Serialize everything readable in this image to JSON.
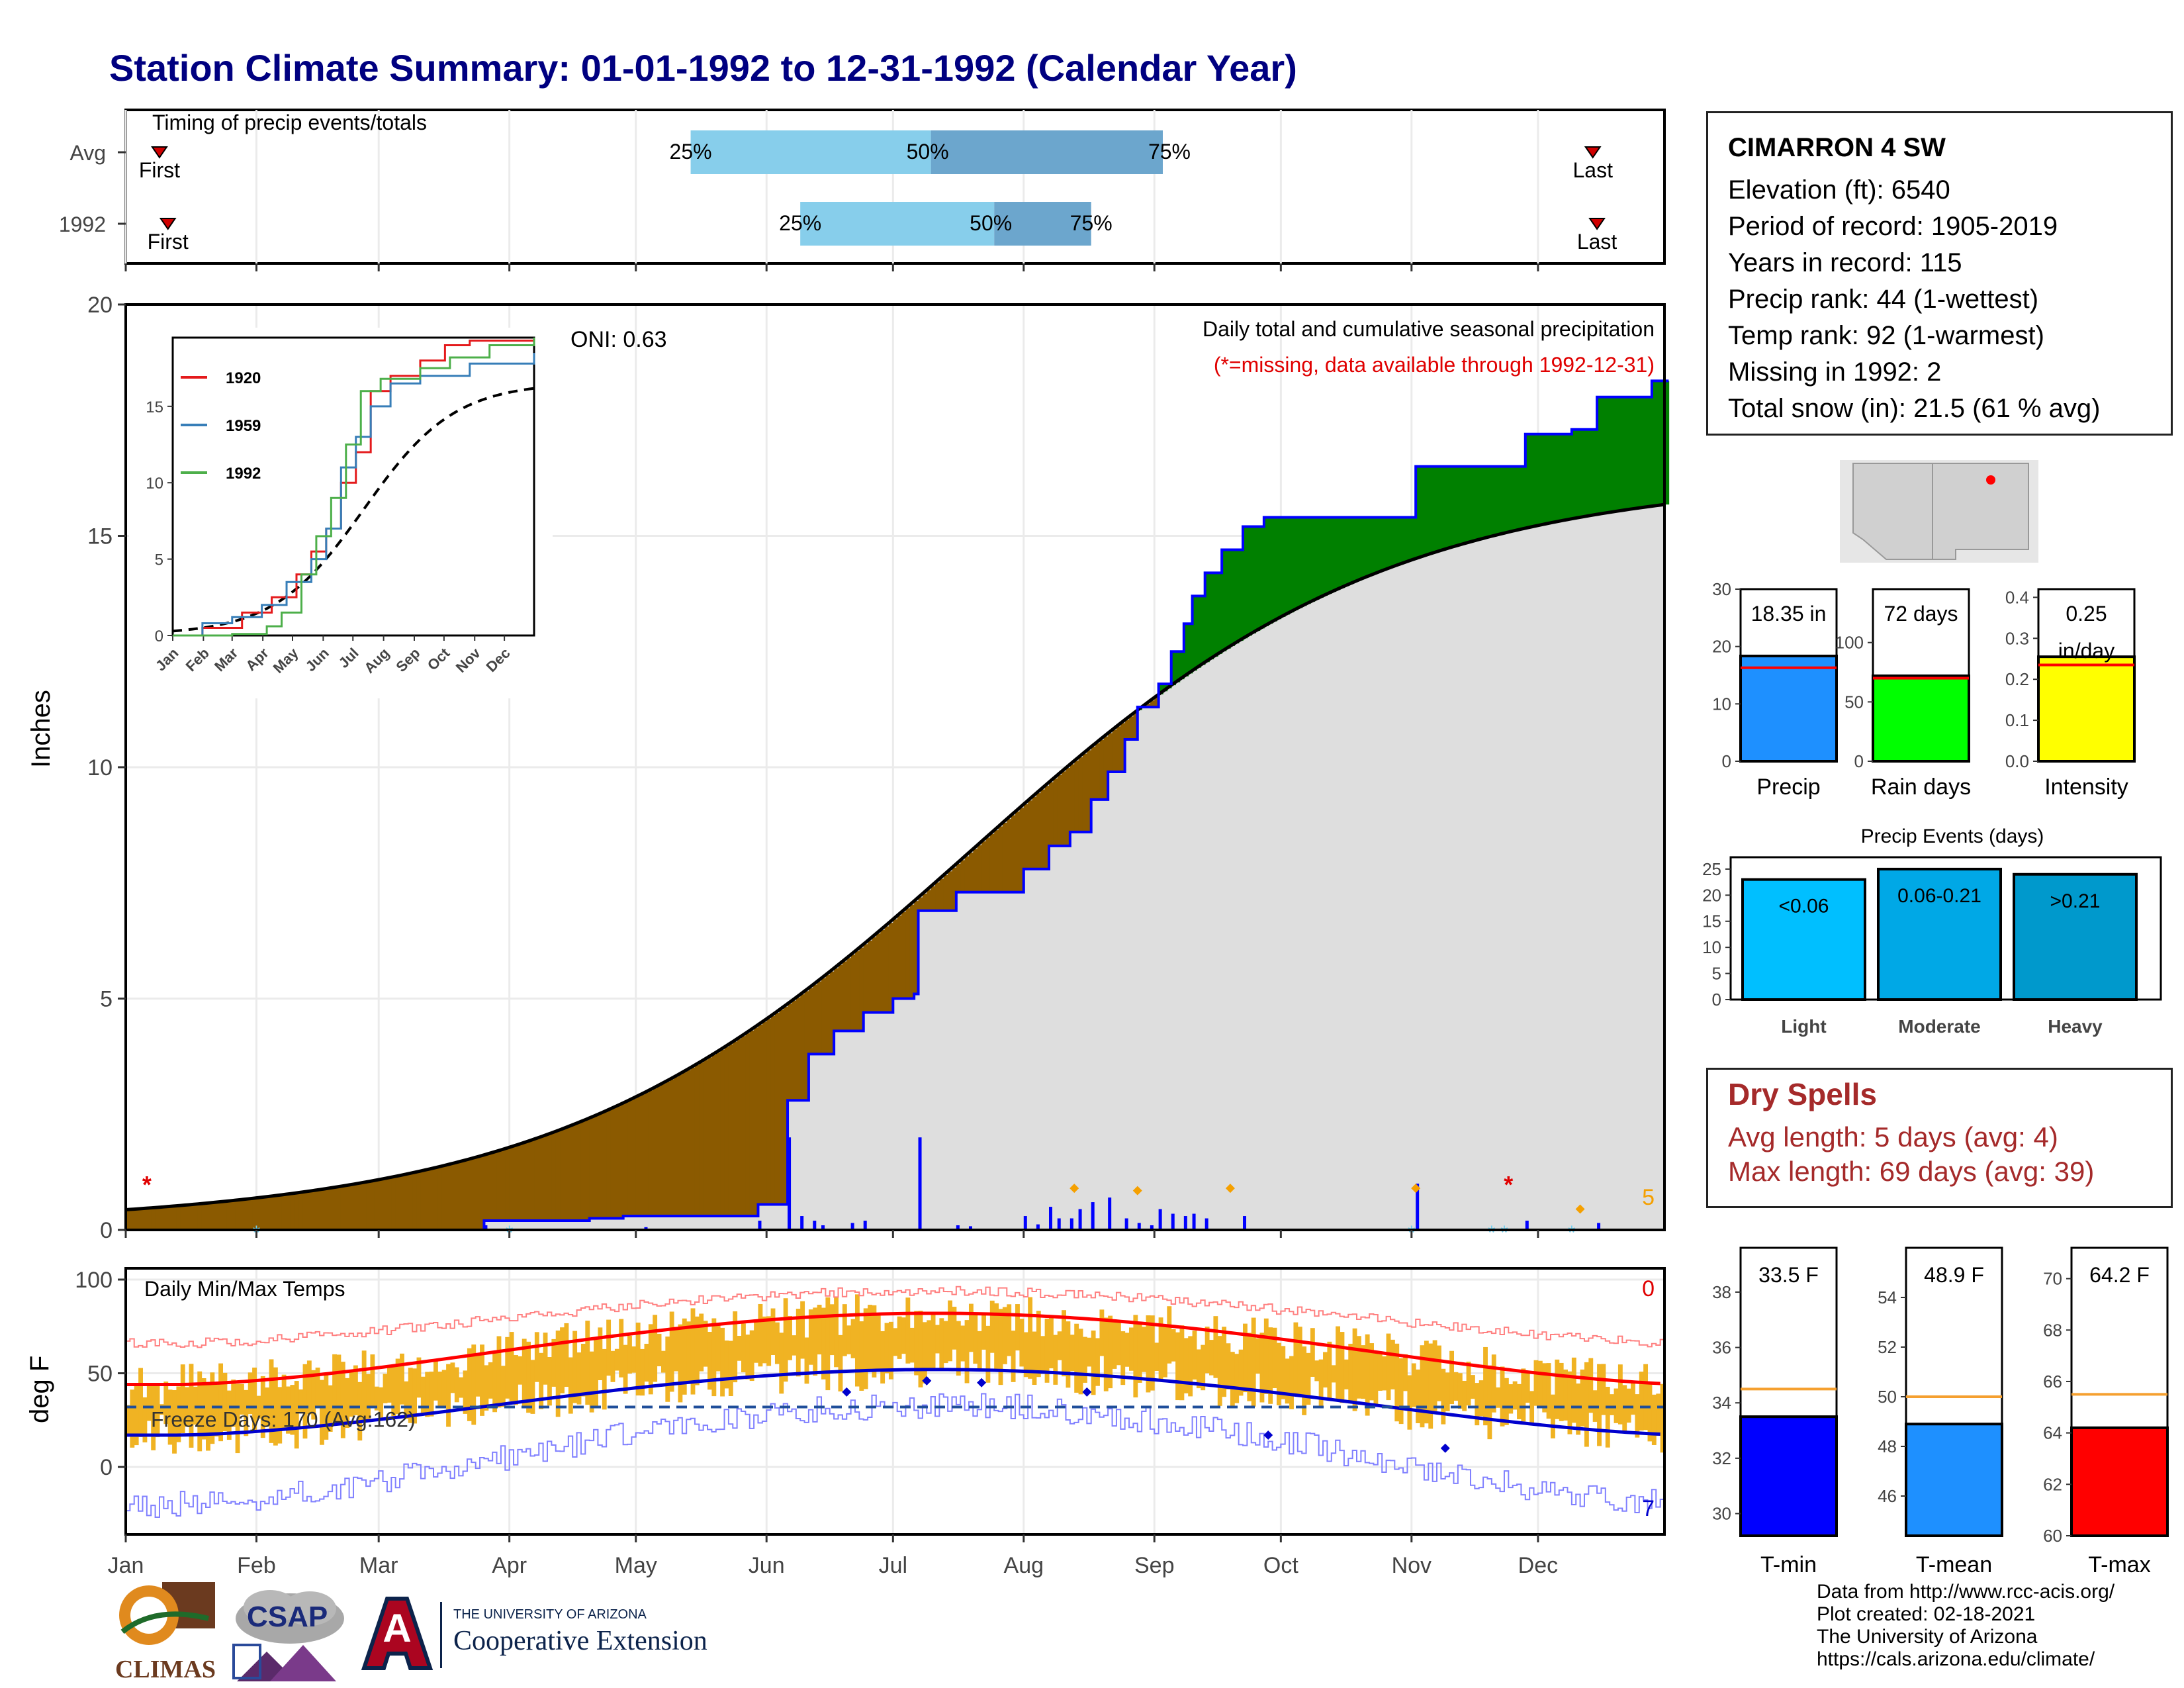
{
  "title": "Station Climate Summary: 01-01-1992 to 12-31-1992 (Calendar Year)",
  "colors": {
    "title": "#000080",
    "normal_fill": "#DEDEDE",
    "above_normal": "#008000",
    "below_normal": "#8B5A00",
    "precip_bar": "#0000FF",
    "temp_bar": "#F0B323",
    "tmax_line": "#FF0000",
    "tmin_line": "#0000CD",
    "quartile_light": "#87CEEB",
    "quartile_dark": "#6CA6CD"
  },
  "timing_panel": {
    "title": "Timing of precip events/totals",
    "rows": [
      {
        "label": "Avg",
        "first_label": "First",
        "last_label": "Last",
        "q25_label": "25%",
        "q50_label": "50%",
        "q75_label": "75%",
        "first": 8,
        "last": 348,
        "q25": 134,
        "q50": 191,
        "q75": 246
      },
      {
        "label": "1992",
        "first_label": "First",
        "last_label": "Last",
        "q25_label": "25%",
        "q50_label": "50%",
        "q75_label": "75%",
        "first": 10,
        "last": 349,
        "q25": 160,
        "q50": 206,
        "q75": 229
      }
    ]
  },
  "precip_panel": {
    "ylabel": "Inches",
    "subtitle": "Daily total and cumulative seasonal precipitation",
    "missing_note": "(*=missing, data available through 1992-12-31)",
    "oni": "ONI: 0.63",
    "missing_count": "5",
    "yticks": [
      "0",
      "5",
      "10",
      "15",
      "20"
    ],
    "ylim": [
      0,
      20
    ]
  },
  "inset": {
    "legend": [
      {
        "name": "1920",
        "color": "#E41A1C"
      },
      {
        "name": "1959",
        "color": "#377EB8"
      },
      {
        "name": "1992",
        "color": "#4DAF4A"
      }
    ],
    "yticks": [
      "0",
      "5",
      "10",
      "15"
    ],
    "months": [
      "Jan",
      "Feb",
      "Mar",
      "Apr",
      "May",
      "Jun",
      "Jul",
      "Aug",
      "Sep",
      "Oct",
      "Nov",
      "Dec"
    ]
  },
  "temp_panel": {
    "ylabel": "deg F",
    "title": "Daily Min/Max Temps",
    "freeze": "Freeze Days: 170 (Avg:162)",
    "count_top": "0",
    "count_bottom": "7",
    "yticks": [
      "0",
      "50",
      "100"
    ]
  },
  "x_months": [
    "Jan",
    "Feb",
    "Mar",
    "Apr",
    "May",
    "Jun",
    "Jul",
    "Aug",
    "Sep",
    "Oct",
    "Nov",
    "Dec"
  ],
  "station": {
    "name": "CIMARRON 4 SW",
    "lines": [
      "Elevation (ft): 6540",
      "Period of record: 1905-2019",
      "Years in record: 115",
      "Precip rank: 44 (1-wettest)",
      "Temp rank: 92 (1-warmest)",
      "Missing in 1992: 2",
      "Total snow (in): 21.5 (61 % avg)"
    ]
  },
  "mini_bars": [
    {
      "label": "Precip",
      "value_text": "18.35 in",
      "value": 18.35,
      "avg": 16.3,
      "ymax": 30,
      "ticks": [
        "0",
        "10",
        "20",
        "30"
      ],
      "tickvals": [
        0,
        10,
        20,
        30
      ],
      "color": "#1E90FF"
    },
    {
      "label": "Rain days",
      "value_text": "72 days",
      "value": 72,
      "avg": 70,
      "ymax": 145,
      "ticks": [
        "0",
        "50",
        "100"
      ],
      "tickvals": [
        0,
        50,
        100
      ],
      "color": "#00FF00"
    },
    {
      "label": "Intensity",
      "value_text": "0.25\nin/day",
      "value": 0.255,
      "avg": 0.235,
      "ymax": 0.42,
      "ticks": [
        "0.0",
        "0.1",
        "0.2",
        "0.3",
        "0.4"
      ],
      "tickvals": [
        0,
        0.1,
        0.2,
        0.3,
        0.4
      ],
      "color": "#FFFF00"
    }
  ],
  "events": {
    "title": "Precip Events (days)",
    "ticks": [
      "0",
      "5",
      "10",
      "15",
      "20",
      "25"
    ],
    "bars": [
      {
        "label": "Light",
        "range": "<0.06",
        "value": 23,
        "color": "#00BFFF"
      },
      {
        "label": "Moderate",
        "range": "0.06-0.21",
        "value": 25,
        "color": "#00A8E6"
      },
      {
        "label": "Heavy",
        "range": ">0.21",
        "value": 24,
        "color": "#0099CC"
      }
    ]
  },
  "dry_spells": {
    "title": "Dry Spells",
    "avg": "Avg length: 5 days (avg: 4)",
    "max": "Max length: 69 days (avg: 39)"
  },
  "temp_bars": [
    {
      "label": "T-min",
      "value_text": "33.5 F",
      "value": 33.5,
      "avg": 34.5,
      "ymin": 29.2,
      "ymax": 39.6,
      "ticks": [
        "30",
        "32",
        "34",
        "36",
        "38"
      ],
      "tickvals": [
        30,
        32,
        34,
        36,
        38
      ],
      "color": "#0000FF"
    },
    {
      "label": "T-mean",
      "value_text": "48.9 F",
      "value": 48.9,
      "avg": 50,
      "ymin": 44.4,
      "ymax": 56,
      "ticks": [
        "46",
        "48",
        "50",
        "52",
        "54"
      ],
      "tickvals": [
        46,
        48,
        50,
        52,
        54
      ],
      "color": "#1E90FF"
    },
    {
      "label": "T-max",
      "value_text": "64.2 F",
      "value": 64.2,
      "avg": 65.5,
      "ymin": 60,
      "ymax": 71.2,
      "ticks": [
        "60",
        "62",
        "64",
        "66",
        "68",
        "70"
      ],
      "tickvals": [
        60,
        62,
        64,
        66,
        68,
        70
      ],
      "color": "#FF0000"
    }
  ],
  "logos": {
    "climas": "CLIMAS",
    "csap": "CSAP",
    "ua_top": "THE UNIVERSITY OF ARIZONA",
    "ua_main": "Cooperative Extension",
    "ua_letter": "A"
  },
  "credits": [
    "Data from http://www.rcc-acis.org/",
    "Plot created: 02-18-2021",
    "The University of Arizona",
    "https://cals.arizona.edu/climate/"
  ]
}
